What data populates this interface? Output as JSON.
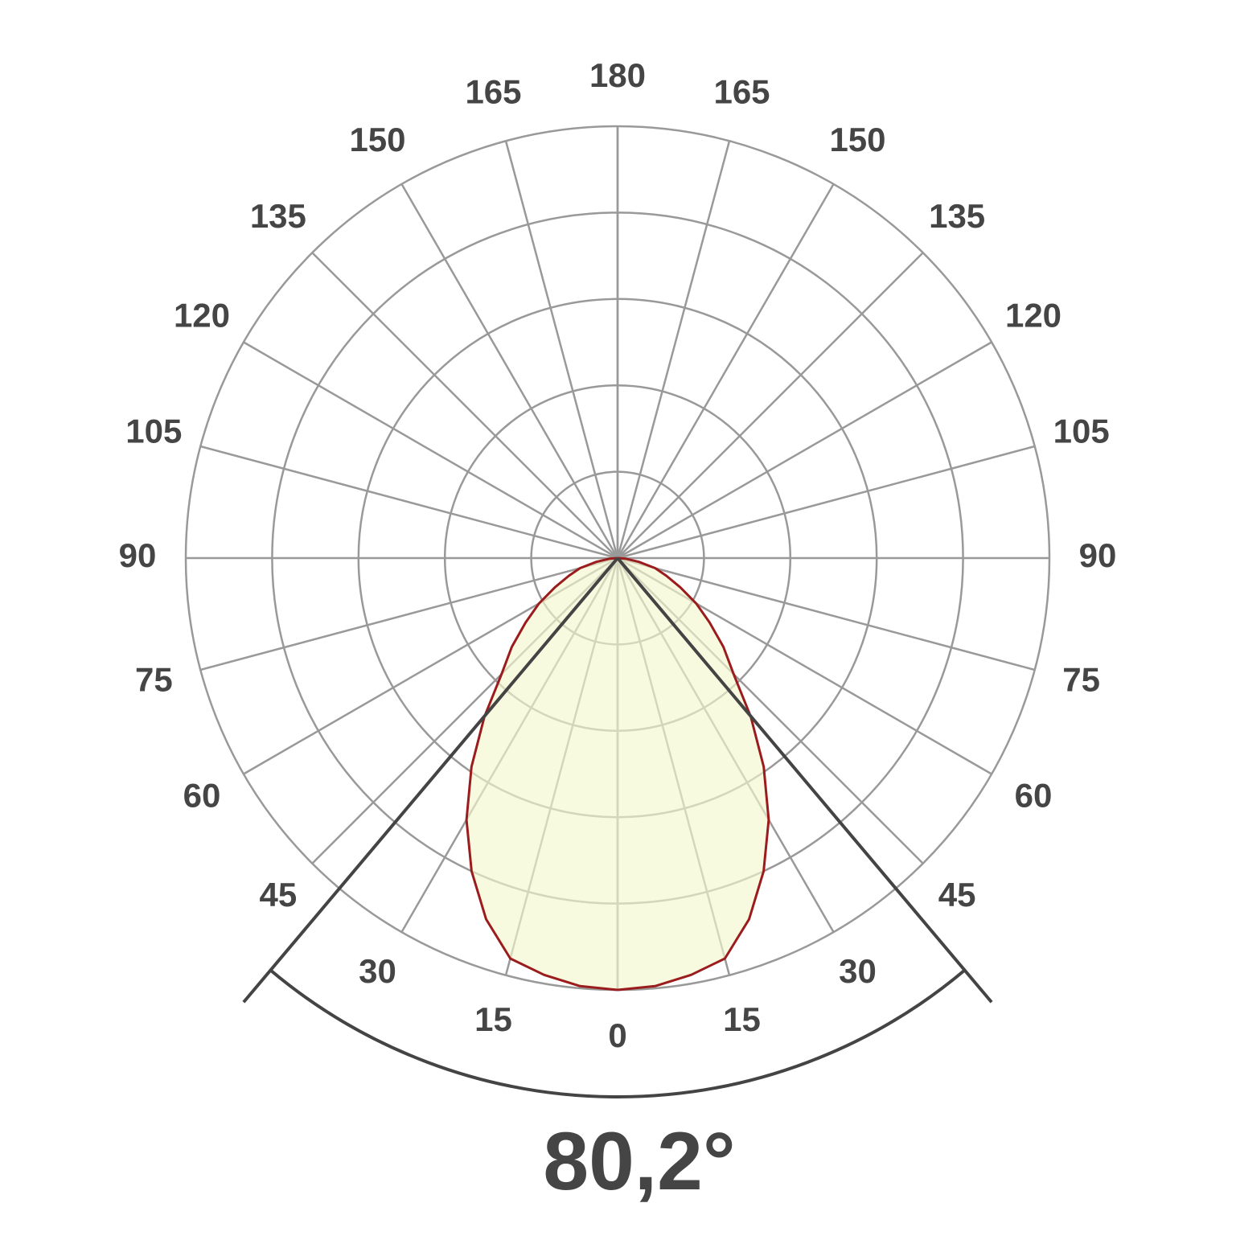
{
  "chart_data": {
    "type": "polar",
    "angle_ticks": [
      0,
      15,
      30,
      45,
      60,
      75,
      90,
      105,
      120,
      135,
      150,
      165,
      180
    ],
    "rlim": [
      0,
      1
    ],
    "rticks": [
      0.2,
      0.4,
      0.6,
      0.8,
      1
    ],
    "series": [
      {
        "color": "#9b1c1c",
        "angles": [
          0,
          5,
          10,
          15,
          20,
          25,
          30,
          35,
          40,
          45,
          50,
          55,
          60,
          65,
          70,
          75,
          80,
          85,
          90
        ],
        "values": [
          1.0,
          0.995,
          0.98,
          0.96,
          0.89,
          0.8,
          0.7,
          0.59,
          0.48,
          0.38,
          0.32,
          0.26,
          0.21,
          0.16,
          0.12,
          0.09,
          0.05,
          0.02,
          0
        ]
      }
    ],
    "beam_angle": 80.2,
    "beam_angle_label": "80,2°",
    "grid": true
  }
}
